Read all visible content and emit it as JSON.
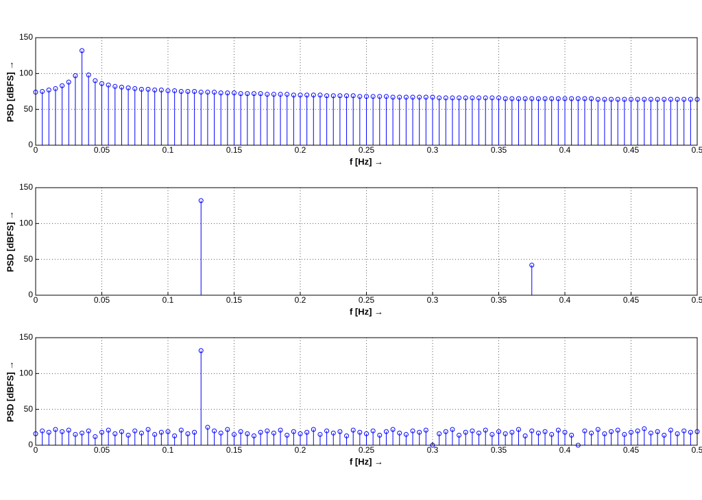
{
  "chart_data": [
    {
      "type": "stem",
      "xlabel": "f [Hz] →",
      "ylabel": "PSD [dBFS] →",
      "color": "#0000ff",
      "grid": true,
      "xlim": [
        0,
        0.5
      ],
      "ylim": [
        0,
        150
      ],
      "xticks": [
        0,
        0.05,
        0.1,
        0.15,
        0.2,
        0.25,
        0.3,
        0.35,
        0.4,
        0.45,
        0.5
      ],
      "yticks": [
        0,
        50,
        100,
        150
      ],
      "x": [
        0,
        0.005,
        0.01,
        0.015,
        0.02,
        0.025,
        0.03,
        0.035,
        0.04,
        0.045,
        0.05,
        0.055,
        0.06,
        0.065,
        0.07,
        0.075,
        0.08,
        0.085,
        0.09,
        0.095,
        0.1,
        0.105,
        0.11,
        0.115,
        0.12,
        0.125,
        0.13,
        0.135,
        0.14,
        0.145,
        0.15,
        0.155,
        0.16,
        0.165,
        0.17,
        0.175,
        0.18,
        0.185,
        0.19,
        0.195,
        0.2,
        0.205,
        0.21,
        0.215,
        0.22,
        0.225,
        0.23,
        0.235,
        0.24,
        0.245,
        0.25,
        0.255,
        0.26,
        0.265,
        0.27,
        0.275,
        0.28,
        0.285,
        0.29,
        0.295,
        0.3,
        0.305,
        0.31,
        0.315,
        0.32,
        0.325,
        0.33,
        0.335,
        0.34,
        0.345,
        0.35,
        0.355,
        0.36,
        0.365,
        0.37,
        0.375,
        0.38,
        0.385,
        0.39,
        0.395,
        0.4,
        0.405,
        0.41,
        0.415,
        0.42,
        0.425,
        0.43,
        0.435,
        0.44,
        0.445,
        0.45,
        0.455,
        0.46,
        0.465,
        0.47,
        0.475,
        0.48,
        0.485,
        0.49,
        0.495,
        0.5
      ],
      "values": [
        74,
        75,
        77,
        79,
        83,
        88,
        97,
        132,
        98,
        90,
        86,
        84,
        82,
        81,
        80,
        79,
        78,
        78,
        77,
        77,
        76,
        76,
        75,
        75,
        75,
        74,
        74,
        74,
        73,
        73,
        73,
        72,
        72,
        72,
        72,
        71,
        71,
        71,
        71,
        70,
        70,
        70,
        70,
        70,
        69,
        69,
        69,
        69,
        69,
        68,
        68,
        68,
        68,
        68,
        67,
        67,
        67,
        67,
        67,
        67,
        67,
        66,
        66,
        66,
        66,
        66,
        66,
        66,
        66,
        66,
        66,
        65,
        65,
        65,
        65,
        65,
        65,
        65,
        65,
        65,
        65,
        65,
        65,
        65,
        65,
        64,
        64,
        64,
        64,
        64,
        64,
        64,
        64,
        64,
        64,
        64,
        64,
        64,
        64,
        64,
        64
      ]
    },
    {
      "type": "stem",
      "xlabel": "f [Hz] →",
      "ylabel": "PSD [dBFS] →",
      "color": "#0000ff",
      "grid": true,
      "xlim": [
        0,
        0.5
      ],
      "ylim": [
        0,
        150
      ],
      "xticks": [
        0,
        0.05,
        0.1,
        0.15,
        0.2,
        0.25,
        0.3,
        0.35,
        0.4,
        0.45,
        0.5
      ],
      "yticks": [
        0,
        50,
        100,
        150
      ],
      "x": [
        0.125,
        0.375
      ],
      "values": [
        132,
        42
      ]
    },
    {
      "type": "stem",
      "xlabel": "f [Hz] →",
      "ylabel": "PSD [dBFS] →",
      "color": "#0000ff",
      "grid": true,
      "xlim": [
        0,
        0.5
      ],
      "ylim": [
        0,
        150
      ],
      "xticks": [
        0,
        0.05,
        0.1,
        0.15,
        0.2,
        0.25,
        0.3,
        0.35,
        0.4,
        0.45,
        0.5
      ],
      "yticks": [
        0,
        50,
        100,
        150
      ],
      "x": [
        0,
        0.005,
        0.01,
        0.015,
        0.02,
        0.025,
        0.03,
        0.035,
        0.04,
        0.045,
        0.05,
        0.055,
        0.06,
        0.065,
        0.07,
        0.075,
        0.08,
        0.085,
        0.09,
        0.095,
        0.1,
        0.105,
        0.11,
        0.115,
        0.12,
        0.125,
        0.13,
        0.135,
        0.14,
        0.145,
        0.15,
        0.155,
        0.16,
        0.165,
        0.17,
        0.175,
        0.18,
        0.185,
        0.19,
        0.195,
        0.2,
        0.205,
        0.21,
        0.215,
        0.22,
        0.225,
        0.23,
        0.235,
        0.24,
        0.245,
        0.25,
        0.255,
        0.26,
        0.265,
        0.27,
        0.275,
        0.28,
        0.285,
        0.29,
        0.295,
        0.3,
        0.305,
        0.31,
        0.315,
        0.32,
        0.325,
        0.33,
        0.335,
        0.34,
        0.345,
        0.35,
        0.355,
        0.36,
        0.365,
        0.37,
        0.375,
        0.38,
        0.385,
        0.39,
        0.395,
        0.4,
        0.405,
        0.41,
        0.415,
        0.42,
        0.425,
        0.43,
        0.435,
        0.44,
        0.445,
        0.45,
        0.455,
        0.46,
        0.465,
        0.47,
        0.475,
        0.48,
        0.485,
        0.49,
        0.495,
        0.5
      ],
      "values": [
        16,
        20,
        18,
        22,
        19,
        21,
        15,
        17,
        20,
        12,
        18,
        21,
        16,
        19,
        14,
        20,
        17,
        22,
        15,
        18,
        19,
        13,
        21,
        16,
        18,
        132,
        25,
        20,
        17,
        22,
        15,
        19,
        16,
        13,
        18,
        20,
        17,
        21,
        14,
        19,
        16,
        18,
        22,
        15,
        20,
        17,
        19,
        13,
        21,
        18,
        16,
        20,
        14,
        19,
        22,
        17,
        15,
        20,
        18,
        21,
        0,
        16,
        19,
        22,
        14,
        18,
        20,
        17,
        21,
        15,
        19,
        16,
        18,
        22,
        13,
        20,
        17,
        19,
        15,
        21,
        18,
        14,
        0,
        20,
        17,
        22,
        16,
        19,
        21,
        15,
        18,
        20,
        23,
        17,
        19,
        14,
        21,
        16,
        20,
        18,
        19
      ]
    }
  ]
}
